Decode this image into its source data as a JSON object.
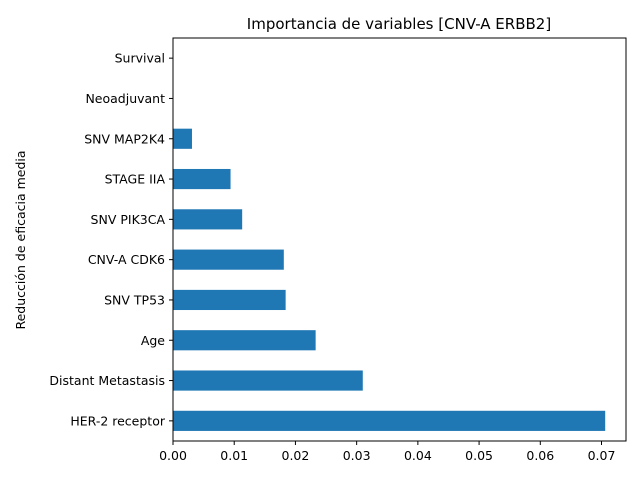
{
  "chart_data": {
    "type": "bar",
    "orientation": "horizontal",
    "title": "Importancia de variables [CNV-A ERBB2]",
    "xlabel": "",
    "ylabel": "Reducción de eficacia media",
    "categories": [
      "HER-2 receptor",
      "Distant Metastasis",
      "Age",
      "SNV TP53",
      "CNV-A CDK6",
      "SNV PIK3CA",
      "STAGE IIA",
      "SNV MAP2K4",
      "Neoadjuvant",
      "Survival"
    ],
    "values": [
      0.0706,
      0.031,
      0.0233,
      0.0184,
      0.0181,
      0.0113,
      0.0094,
      0.0031,
      0.0,
      0.0
    ],
    "xlim": [
      0,
      0.074
    ],
    "xticks": [
      "0.00",
      "0.01",
      "0.02",
      "0.03",
      "0.04",
      "0.05",
      "0.06",
      "0.07"
    ],
    "bar_color": "#1f77b4",
    "grid": false,
    "legend": "none"
  }
}
